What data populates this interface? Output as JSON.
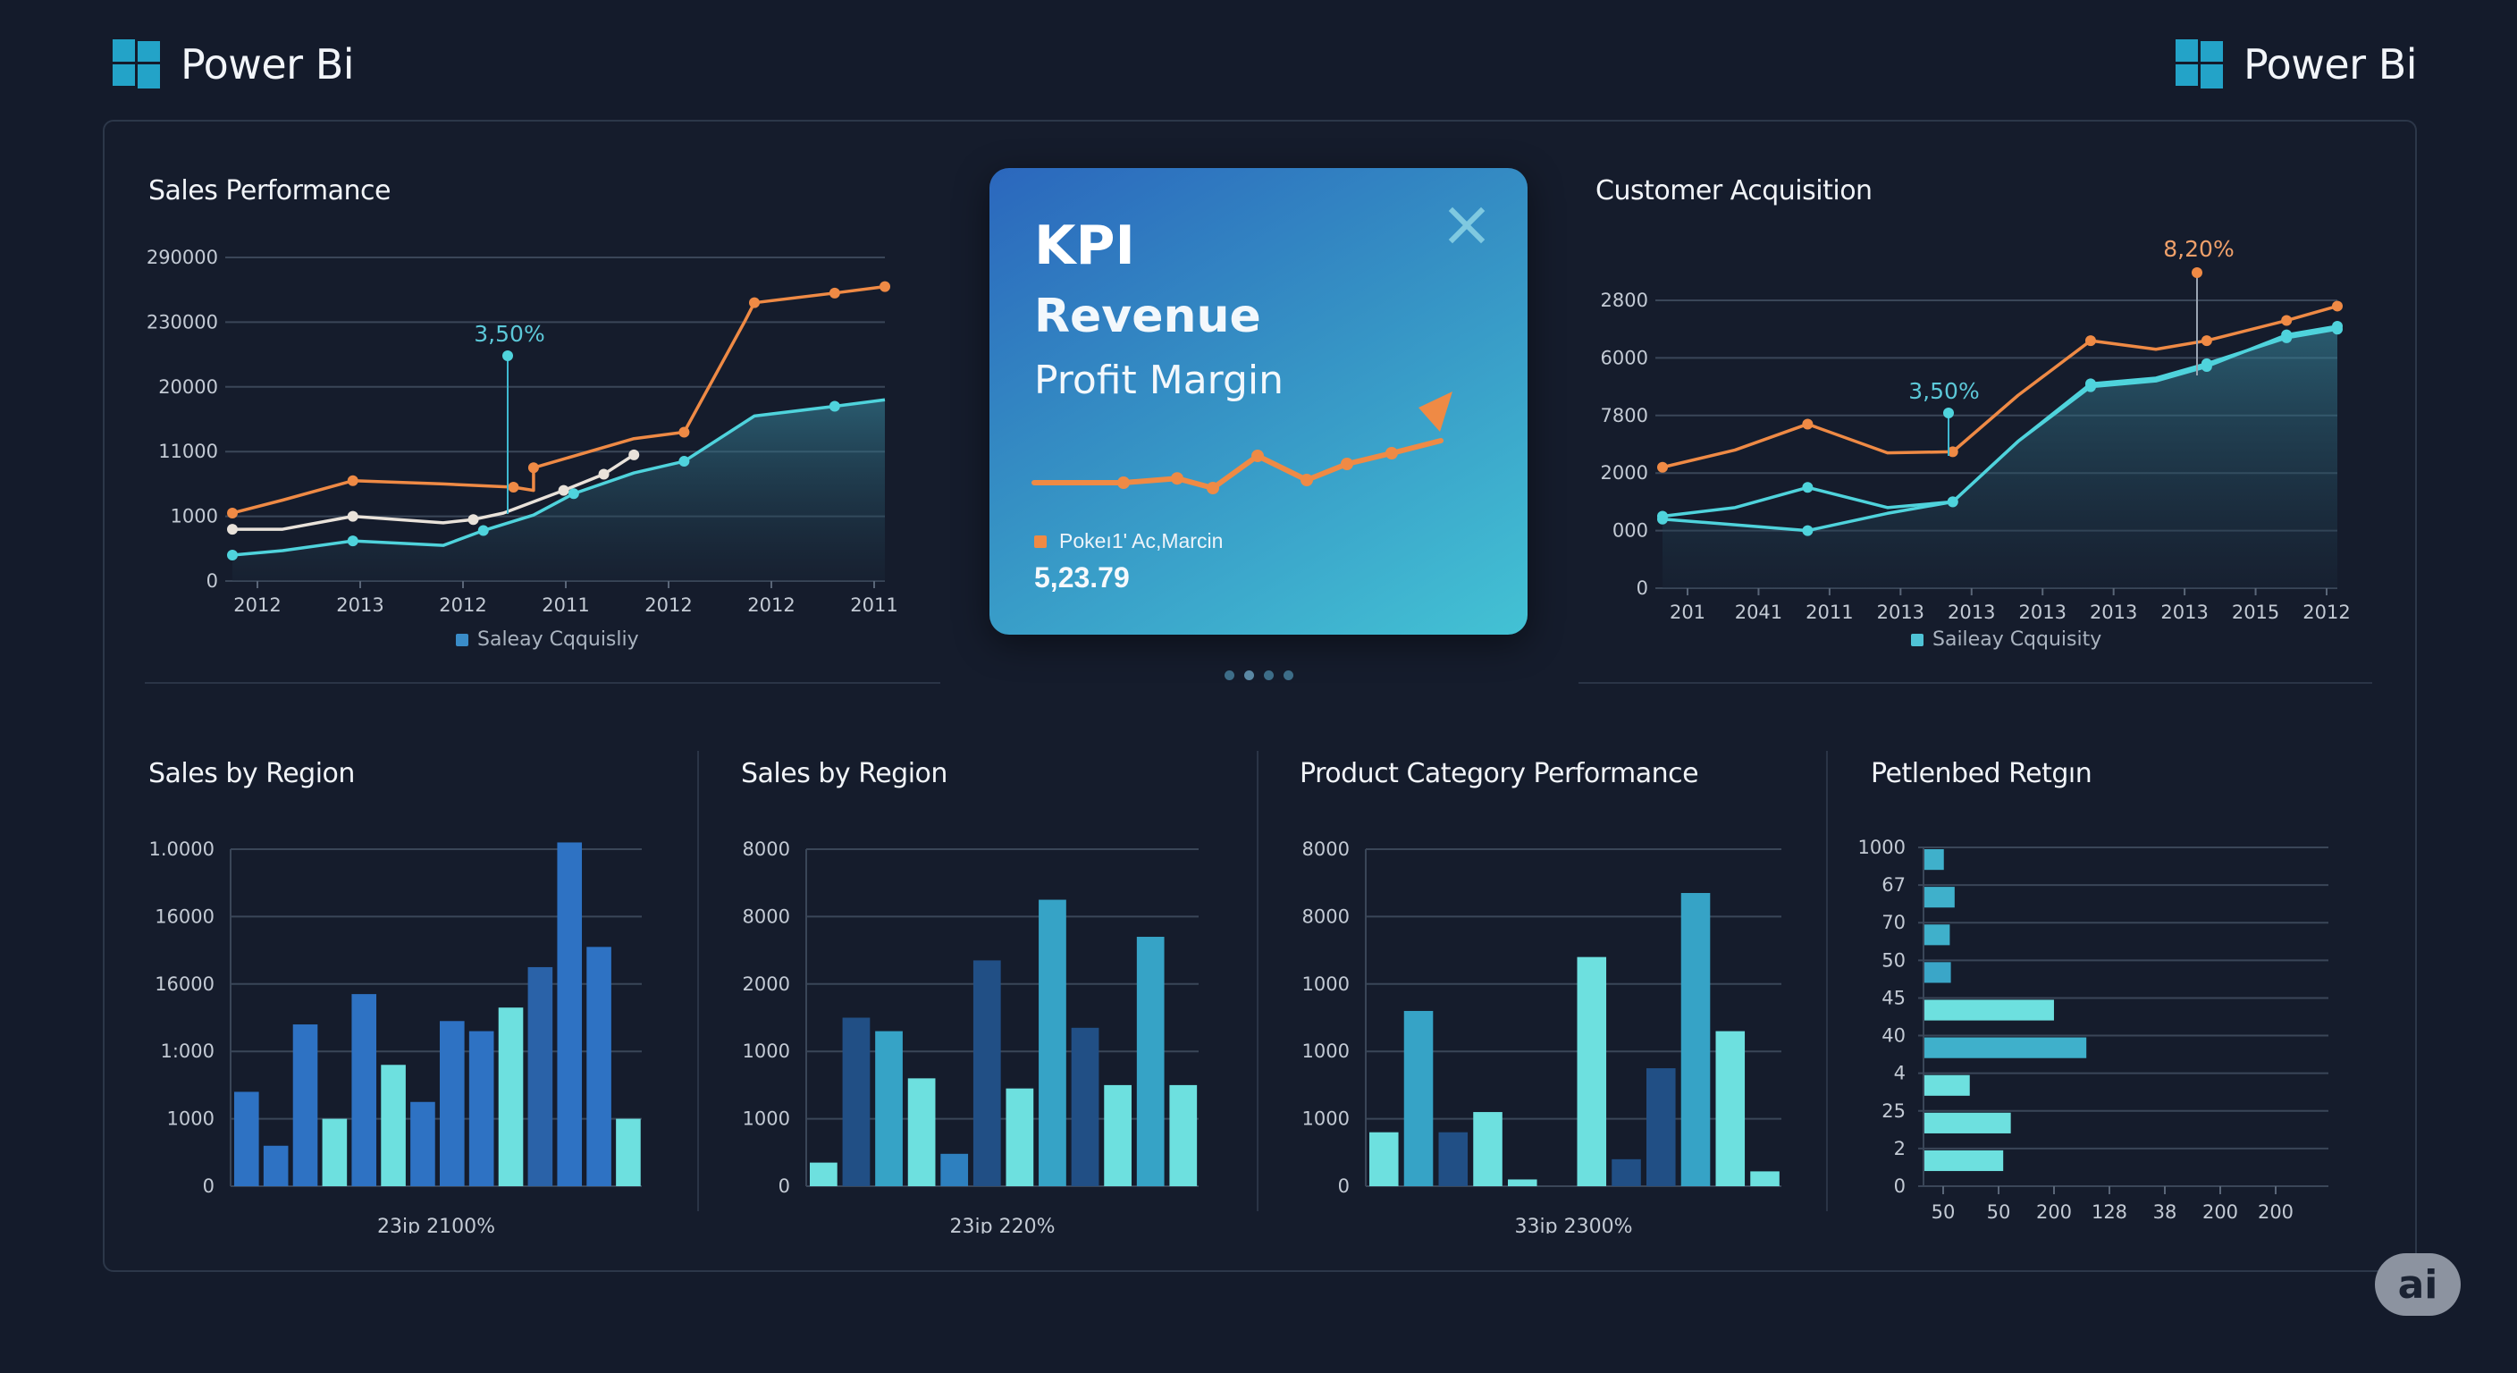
{
  "header": {
    "brand_left": "Power Bi",
    "brand_right": "Power Bi"
  },
  "colors": {
    "background": "#141b2b",
    "orange": "#ef8a45",
    "teal": "#4fd3dc",
    "blue": "#2e72c3",
    "cyan_bar": "#6de0df",
    "mid_blue": "#36a3c6",
    "navy_bar": "#214f85"
  },
  "kpi_card": {
    "title": "KPI",
    "subtitle": "Revenue",
    "metric": "Profit Margin",
    "legend_label": "Pokeı1' Ac,Marcin",
    "value": "5,23.79",
    "trend_points": [
      0,
      0,
      0.08,
      -0.1,
      0.5,
      0.05,
      0.35,
      0.55
    ],
    "close_icon": "close-x-icon",
    "pager_dots": 4,
    "active_dot": 1
  },
  "ai_badge": {
    "label": "ai"
  },
  "chart_data": [
    {
      "id": "sales-performance",
      "type": "line",
      "title": "Sales Performance",
      "y_ticks": [
        "0",
        "1000",
        "11000",
        "20000",
        "230000",
        "290000"
      ],
      "x_ticks": [
        "2012",
        "2013",
        "2012",
        "2011",
        "2012",
        "2012",
        "2011"
      ],
      "annotation": "3,50%",
      "legend": [
        "Saleay Cqquisliy"
      ],
      "ylim": [
        0,
        5
      ],
      "series": [
        {
          "name": "orange",
          "color": "#ef8a45",
          "values": [
            1.05,
            1.25,
            1.55,
            1.5,
            1.45,
            1.4,
            1.75,
            2.2,
            2.3,
            4.0,
            4.3,
            4.45,
            4.55
          ],
          "x": [
            0,
            0.5,
            1.2,
            2.1,
            2.8,
            3.0,
            3.0,
            4.0,
            4.5,
            5.1,
            5.2,
            6.0,
            6.5
          ]
        },
        {
          "name": "white",
          "color": "#e9e2da",
          "values": [
            0.8,
            0.8,
            1.0,
            0.9,
            0.95,
            1.05,
            1.4,
            1.65,
            1.95
          ],
          "x": [
            0,
            0.5,
            1.2,
            2.1,
            2.4,
            2.7,
            3.3,
            3.7,
            4.0
          ]
        },
        {
          "name": "teal",
          "color": "#4fd3dc",
          "values": [
            0.4,
            0.47,
            0.62,
            0.55,
            0.78,
            1.02,
            1.35,
            1.67,
            1.85,
            2.55,
            2.7,
            2.8
          ],
          "x": [
            0,
            0.5,
            1.2,
            2.1,
            2.5,
            3.0,
            3.4,
            4.0,
            4.5,
            5.2,
            6.0,
            6.5
          ]
        }
      ]
    },
    {
      "id": "customer-acquisition",
      "type": "line",
      "title": "Customer Acquisition",
      "y_ticks": [
        "0",
        "000",
        "2000",
        "7800",
        "6000",
        "2800"
      ],
      "x_ticks": [
        "201",
        "2041",
        "2011",
        "2013",
        "2013",
        "2013",
        "2013",
        "2013",
        "2015",
        "2012"
      ],
      "annotations": [
        "3,50%",
        "8,20%"
      ],
      "legend": [
        "Saileay Cqquisity"
      ],
      "ylim": [
        0,
        5
      ],
      "series": [
        {
          "name": "orange",
          "color": "#ef8a45",
          "values": [
            2.1,
            2.4,
            2.85,
            2.35,
            2.37,
            3.35,
            4.3,
            4.15,
            4.3,
            4.65,
            4.9
          ],
          "x": [
            0,
            1,
            2,
            3.1,
            4,
            4.9,
            5.9,
            6.8,
            7.5,
            8.6,
            9.3
          ]
        },
        {
          "name": "teal",
          "color": "#4fd3dc",
          "values": [
            1.25,
            1.4,
            1.75,
            1.4,
            1.5,
            2.55,
            3.5,
            3.6,
            3.85,
            4.4,
            4.55
          ],
          "x": [
            0,
            1,
            2,
            3.1,
            4,
            4.9,
            5.9,
            6.8,
            7.5,
            8.6,
            9.3
          ]
        },
        {
          "name": "teal-2",
          "color": "#4fd3dc",
          "values": [
            1.2,
            1.1,
            1.0,
            1.3,
            1.5,
            2.55,
            3.55,
            3.65,
            3.9,
            4.35,
            4.5
          ],
          "x": [
            0,
            1,
            2,
            3.1,
            4,
            4.9,
            5.9,
            6.8,
            7.5,
            8.6,
            9.3
          ]
        }
      ]
    },
    {
      "id": "sales-by-region-1",
      "type": "bar",
      "title": "Sales by Region",
      "y_ticks": [
        "0",
        "1000",
        "1:000",
        "16000",
        "16000",
        "1.0000"
      ],
      "xlabel": "23ip 2100%",
      "ylim": [
        0,
        5
      ],
      "values": [
        1.4,
        0.6,
        2.4,
        1.0,
        2.85,
        1.8,
        1.25,
        2.45,
        2.3,
        2.65,
        3.25,
        5.1,
        3.55,
        1.0
      ],
      "colors": [
        "#2e72c3",
        "#2e72c3",
        "#2e72c3",
        "#6de0df",
        "#2e72c3",
        "#6de0df",
        "#2e72c3",
        "#2e72c3",
        "#2e72c3",
        "#6de0df",
        "#2a62a8",
        "#2e72c3",
        "#2e72c3",
        "#6de0df"
      ]
    },
    {
      "id": "sales-by-region-2",
      "type": "bar",
      "title": "Sales by Region",
      "y_ticks": [
        "0",
        "1000",
        "1000",
        "2000",
        "8000",
        "8000"
      ],
      "xlabel": "23ip 220%",
      "ylim": [
        0,
        5
      ],
      "values": [
        0.35,
        2.5,
        2.3,
        1.6,
        0.48,
        3.35,
        1.45,
        4.25,
        2.35,
        1.5,
        3.7,
        1.5
      ],
      "colors": [
        "#6de0df",
        "#214f85",
        "#36a3c6",
        "#6de0df",
        "#2e80bf",
        "#214f85",
        "#6de0df",
        "#36a3c6",
        "#214f85",
        "#6de0df",
        "#36a3c6",
        "#6de0df"
      ]
    },
    {
      "id": "product-category-performance",
      "type": "bar",
      "title": "Product Category Performance",
      "y_ticks": [
        "0",
        "1000",
        "1000",
        "1000",
        "8000",
        "8000"
      ],
      "xlabel": "33ip 2300%",
      "ylim": [
        0,
        5
      ],
      "values": [
        0.8,
        2.6,
        0.8,
        1.1,
        0.1,
        0,
        3.4,
        0.4,
        1.75,
        4.35,
        2.3,
        0.22
      ],
      "colors": [
        "#6de0df",
        "#36a3c6",
        "#214f85",
        "#6de0df",
        "#6de0df",
        "#6de0df",
        "#6de0df",
        "#214f85",
        "#214f85",
        "#36a3c6",
        "#6de0df",
        "#6de0df"
      ]
    },
    {
      "id": "petlenbed-retgin",
      "type": "bar",
      "orientation": "horizontal",
      "title": "Petlenbed Retgın",
      "y_ticks": [
        "1000",
        "67",
        "70",
        "50",
        "45",
        "40",
        "4",
        "25",
        "2",
        "0"
      ],
      "x_ticks": [
        "50",
        "50",
        "200",
        "128",
        "38",
        "200",
        "200"
      ],
      "xlim": [
        0,
        7.5
      ],
      "values": [
        0.36,
        0.56,
        0.47,
        0.49,
        2.4,
        3.0,
        0.84,
        1.6,
        1.46
      ],
      "colors": [
        "#3fb0cb",
        "#3fb0cb",
        "#3fb0cb",
        "#3aa6c8",
        "#6de0df",
        "#3fb0cb",
        "#6de0df",
        "#6de0df",
        "#6de0df"
      ]
    }
  ]
}
